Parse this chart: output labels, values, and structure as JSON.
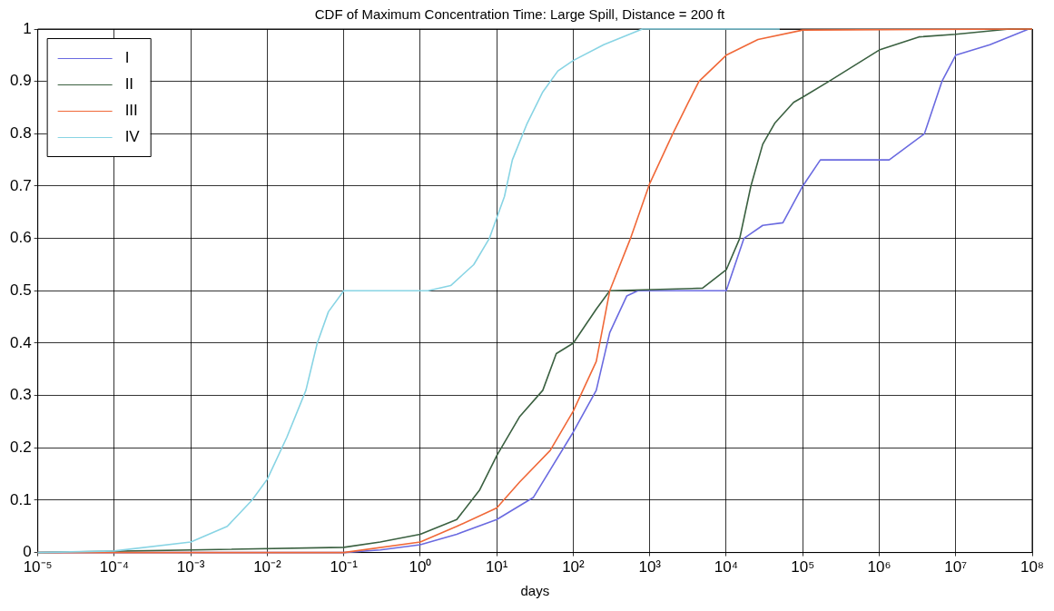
{
  "chart_data": {
    "type": "line",
    "title": "CDF of Maximum Concentration Time: Large Spill, Distance = 200 ft",
    "xlabel": "days",
    "log": "x",
    "grid": true,
    "legend": "top left",
    "marker": "none",
    "line_style": "solid",
    "xlim": [
      1e-05,
      100000000.0
    ],
    "ylim": [
      0,
      1
    ],
    "xticks": [
      {
        "value": 1e-05,
        "label": "10⁻⁵"
      },
      {
        "value": 0.0001,
        "label": "10⁻⁴"
      },
      {
        "value": 0.001,
        "label": "10⁻³"
      },
      {
        "value": 0.01,
        "label": "10⁻²"
      },
      {
        "value": 0.1,
        "label": "10⁻¹"
      },
      {
        "value": 1,
        "label": "10⁰"
      },
      {
        "value": 10,
        "label": "10¹"
      },
      {
        "value": 100,
        "label": "10²"
      },
      {
        "value": 1000,
        "label": "10³"
      },
      {
        "value": 10000.0,
        "label": "10⁴"
      },
      {
        "value": 100000.0,
        "label": "10⁵"
      },
      {
        "value": 1000000.0,
        "label": "10⁶"
      },
      {
        "value": 10000000.0,
        "label": "10⁷"
      },
      {
        "value": 100000000.0,
        "label": "10⁸"
      }
    ],
    "yticks": [
      0,
      0.1,
      0.2,
      0.3,
      0.4,
      0.5,
      0.6,
      0.7,
      0.8,
      0.9,
      1
    ],
    "series": [
      {
        "name": "I",
        "color": "#6a6ae0",
        "x": [
          1e-05,
          0.1,
          0.3,
          1,
          3,
          10,
          30,
          100,
          200,
          300,
          500,
          700,
          10000.0,
          17000.0,
          30000.0,
          55000.0,
          100000.0,
          170000.0,
          1350000.0,
          3900000.0,
          6600000.0,
          10000000.0,
          28000000.0,
          90000000.0
        ],
        "values": [
          0,
          0,
          0.005,
          0.015,
          0.035,
          0.063,
          0.105,
          0.23,
          0.31,
          0.42,
          0.49,
          0.5,
          0.5,
          0.6,
          0.625,
          0.63,
          0.7,
          0.75,
          0.75,
          0.8,
          0.9,
          0.95,
          0.97,
          1
        ]
      },
      {
        "name": "II",
        "color": "#3a6040",
        "x": [
          1e-05,
          0.1,
          0.3,
          1,
          3,
          6,
          10,
          20,
          40,
          60,
          100,
          200,
          300,
          4900,
          10000.0,
          15000.0,
          21000.0,
          30000.0,
          43000.0,
          76000.0,
          100000.0,
          220000.0,
          1000000.0,
          3300000.0,
          10000000.0,
          50000000.0,
          100000000.0
        ],
        "values": [
          0,
          0.01,
          0.02,
          0.035,
          0.063,
          0.12,
          0.185,
          0.26,
          0.31,
          0.38,
          0.4,
          0.465,
          0.5,
          0.505,
          0.54,
          0.6,
          0.7,
          0.78,
          0.82,
          0.86,
          0.87,
          0.9,
          0.96,
          0.985,
          0.99,
          1,
          1
        ]
      },
      {
        "name": "III",
        "color": "#f06838",
        "x": [
          1e-05,
          0.1,
          1,
          3,
          10,
          20,
          50,
          100,
          200,
          300,
          560,
          1000,
          2000,
          3200,
          4400,
          10000.0,
          26000.0,
          100000.0,
          100000000.0
        ],
        "values": [
          0,
          0,
          0.02,
          0.05,
          0.085,
          0.135,
          0.195,
          0.27,
          0.365,
          0.5,
          0.6,
          0.705,
          0.8,
          0.86,
          0.9,
          0.95,
          0.98,
          0.998,
          1
        ]
      },
      {
        "name": "IV",
        "color": "#88d4e4",
        "x": [
          1e-05,
          0.0001,
          0.001,
          0.003,
          0.0063,
          0.01,
          0.018,
          0.032,
          0.045,
          0.063,
          0.1,
          1.26,
          2.5,
          5,
          8,
          12.6,
          16,
          25,
          40,
          63,
          100,
          250,
          800,
          50000.0
        ],
        "values": [
          0,
          0.003,
          0.02,
          0.05,
          0.1,
          0.14,
          0.22,
          0.31,
          0.4,
          0.46,
          0.5,
          0.5,
          0.51,
          0.55,
          0.6,
          0.68,
          0.75,
          0.82,
          0.88,
          0.92,
          0.94,
          0.97,
          1,
          1
        ]
      }
    ]
  }
}
